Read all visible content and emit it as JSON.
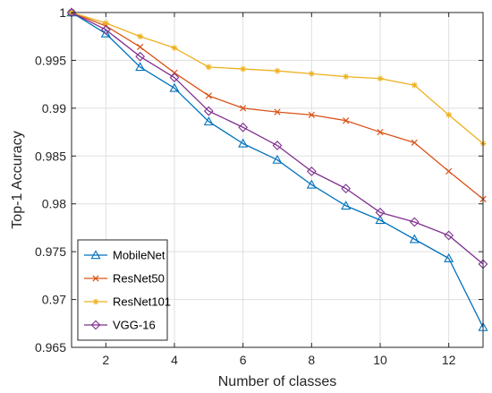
{
  "chart_data": {
    "type": "line",
    "xlabel": "Number of classes",
    "ylabel": "Top-1 Accuracy",
    "xlim": [
      1,
      13
    ],
    "ylim": [
      0.965,
      1.0
    ],
    "xticks": [
      2,
      4,
      6,
      8,
      10,
      12
    ],
    "xtick_labels": [
      "2",
      "4",
      "6",
      "8",
      "10",
      "12"
    ],
    "yticks": [
      0.965,
      0.97,
      0.975,
      0.98,
      0.985,
      0.99,
      0.995,
      1.0
    ],
    "ytick_labels": [
      "0.965",
      "0.97",
      "0.975",
      "0.98",
      "0.985",
      "0.99",
      "0.995",
      "1"
    ],
    "grid": true,
    "legend_position": "bottom-left",
    "x": [
      1,
      2,
      3,
      4,
      5,
      6,
      7,
      8,
      9,
      10,
      11,
      12,
      13
    ],
    "series": [
      {
        "name": "MobileNet",
        "color": "#0072BD",
        "marker": "triangle",
        "values": [
          1.0,
          0.9978,
          0.9943,
          0.9921,
          0.9886,
          0.9863,
          0.9846,
          0.982,
          0.9798,
          0.9783,
          0.9763,
          0.9743,
          0.9671
        ]
      },
      {
        "name": "ResNet50",
        "color": "#D95319",
        "marker": "x",
        "values": [
          1.0,
          0.9986,
          0.9964,
          0.9937,
          0.9913,
          0.99,
          0.9896,
          0.9893,
          0.9887,
          0.9875,
          0.9864,
          0.9834,
          0.9805
        ]
      },
      {
        "name": "ResNet101",
        "color": "#EDB120",
        "marker": "asterisk",
        "values": [
          1.0,
          0.9989,
          0.9975,
          0.9963,
          0.9943,
          0.9941,
          0.9939,
          0.9936,
          0.9933,
          0.9931,
          0.9924,
          0.9893,
          0.9863
        ]
      },
      {
        "name": "VGG-16",
        "color": "#7E2F8E",
        "marker": "diamond",
        "values": [
          1.0,
          0.9982,
          0.9954,
          0.9932,
          0.9897,
          0.988,
          0.9861,
          0.9834,
          0.9816,
          0.9791,
          0.9781,
          0.9767,
          0.9737
        ]
      }
    ]
  }
}
